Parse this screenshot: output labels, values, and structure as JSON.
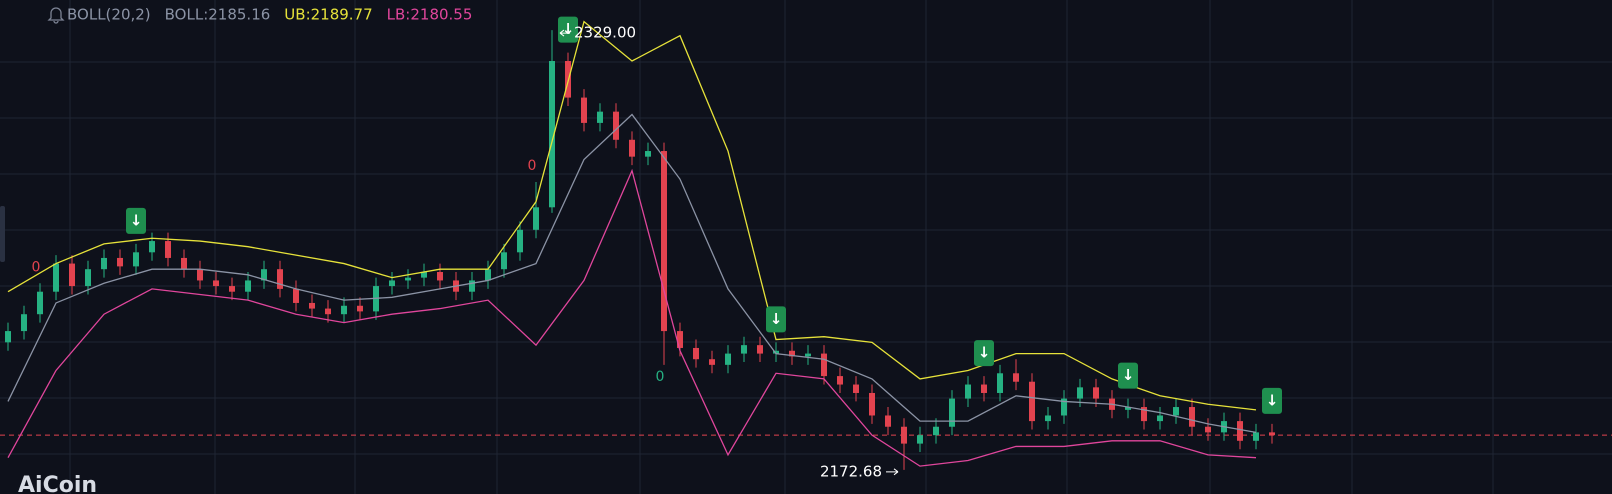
{
  "chart_data": {
    "type": "candlestick",
    "indicator": {
      "name": "BOLL(20,2)",
      "items": [
        {
          "label": "BOLL:2185.16",
          "color": "#8b93a5"
        },
        {
          "label": "UB:2189.77",
          "color": "#e6e23a"
        },
        {
          "label": "LB:2180.55",
          "color": "#e0469c"
        }
      ]
    },
    "watermark": "AiCoin",
    "ylim": [
      2168,
      2334
    ],
    "up_color": "#26b283",
    "down_color": "#e2434f",
    "open": [
      2218,
      2222,
      2228,
      2236,
      2246,
      2238,
      2244,
      2248,
      2245,
      2250,
      2254,
      2248,
      2244,
      2240,
      2238,
      2236,
      2240,
      2244,
      2237,
      2232,
      2230,
      2228,
      2231,
      2229,
      2238,
      2240,
      2241,
      2243,
      2240,
      2236,
      2240,
      2244,
      2250,
      2258,
      2266,
      2318,
      2305,
      2296,
      2300,
      2290,
      2284,
      2286,
      2222,
      2216,
      2212,
      2210,
      2214,
      2217,
      2214,
      2215,
      2213,
      2214,
      2206,
      2203,
      2200,
      2192,
      2188,
      2182,
      2185,
      2188,
      2198,
      2203,
      2200,
      2207,
      2204,
      2190,
      2192,
      2198,
      2202,
      2198,
      2194,
      2195,
      2190,
      2192,
      2195,
      2188,
      2186,
      2190,
      2183,
      2186
    ],
    "high": [
      2225,
      2231,
      2239,
      2249,
      2249,
      2247,
      2251,
      2251,
      2253,
      2257,
      2257,
      2251,
      2247,
      2243,
      2241,
      2243,
      2247,
      2247,
      2240,
      2235,
      2233,
      2234,
      2234,
      2241,
      2243,
      2244,
      2246,
      2246,
      2243,
      2243,
      2247,
      2253,
      2261,
      2275,
      2329,
      2321,
      2308,
      2303,
      2303,
      2293,
      2289,
      2289,
      2225,
      2219,
      2215,
      2217,
      2220,
      2220,
      2218,
      2218,
      2217,
      2217,
      2209,
      2206,
      2203,
      2195,
      2191,
      2188,
      2191,
      2201,
      2206,
      2206,
      2210,
      2212,
      2207,
      2195,
      2201,
      2205,
      2205,
      2201,
      2198,
      2198,
      2195,
      2198,
      2198,
      2191,
      2193,
      2193,
      2189,
      2189
    ],
    "low": [
      2215,
      2219,
      2225,
      2233,
      2235,
      2235,
      2241,
      2242,
      2242,
      2247,
      2245,
      2241,
      2237,
      2235,
      2233,
      2233,
      2237,
      2234,
      2229,
      2227,
      2225,
      2225,
      2226,
      2226,
      2235,
      2237,
      2238,
      2237,
      2233,
      2233,
      2237,
      2241,
      2247,
      2255,
      2264,
      2302,
      2293,
      2293,
      2287,
      2281,
      2281,
      2210,
      2213,
      2209,
      2207,
      2207,
      2211,
      2211,
      2211,
      2210,
      2210,
      2203,
      2200,
      2197,
      2189,
      2185,
      2172.68,
      2179,
      2182,
      2185,
      2195,
      2197,
      2197,
      2201,
      2187,
      2187,
      2189,
      2195,
      2195,
      2191,
      2191,
      2187,
      2187,
      2189,
      2185,
      2183,
      2183,
      2180,
      2180,
      2182
    ],
    "close": [
      2222,
      2228,
      2236,
      2246,
      2238,
      2244,
      2248,
      2245,
      2250,
      2254,
      2248,
      2244,
      2240,
      2238,
      2236,
      2240,
      2244,
      2237,
      2232,
      2230,
      2228,
      2231,
      2229,
      2238,
      2240,
      2241,
      2243,
      2240,
      2236,
      2240,
      2244,
      2250,
      2258,
      2266,
      2318,
      2305,
      2296,
      2300,
      2290,
      2284,
      2286,
      2222,
      2216,
      2212,
      2210,
      2214,
      2217,
      2214,
      2215,
      2213,
      2214,
      2206,
      2203,
      2200,
      2192,
      2188,
      2182,
      2185,
      2188,
      2198,
      2203,
      2200,
      2207,
      2204,
      2190,
      2192,
      2198,
      2202,
      2198,
      2194,
      2195,
      2190,
      2192,
      2195,
      2188,
      2186,
      2190,
      2183,
      2186,
      2185
    ],
    "band_x": [
      0,
      3,
      6,
      9,
      12,
      15,
      18,
      21,
      24,
      27,
      30,
      33,
      36,
      39,
      42,
      45,
      48,
      51,
      54,
      57,
      60,
      63,
      66,
      69,
      72,
      75,
      78
    ],
    "series": [
      {
        "color": "#e6e23a",
        "values": [
          2236,
          2246,
          2253,
          2255,
          2254,
          2252,
          2249,
          2246,
          2241,
          2244,
          2244,
          2268,
          2332,
          2318,
          2327,
          2286,
          2219,
          2220,
          2218,
          2205,
          2208,
          2214,
          2214,
          2205,
          2199,
          2196,
          2194
        ]
      },
      {
        "color": "#8b93a5",
        "values": [
          2197,
          2232,
          2239,
          2244,
          2244,
          2242,
          2237,
          2233,
          2234,
          2237,
          2240,
          2246,
          2283,
          2299,
          2276,
          2237,
          2214,
          2212,
          2205,
          2190,
          2190,
          2199,
          2197,
          2196,
          2193,
          2189,
          2186
        ]
      },
      {
        "color": "#e0469c",
        "values": [
          2177,
          2208,
          2228,
          2237,
          2235,
          2233,
          2228,
          2225,
          2228,
          2230,
          2233,
          2217,
          2240,
          2279,
          2215,
          2178,
          2207,
          2205,
          2185,
          2174,
          2176,
          2181,
          2181,
          2183,
          2183,
          2178,
          2177
        ]
      }
    ],
    "markers": [
      {
        "label": "0",
        "candle": 2,
        "color": "#e2434f"
      },
      {
        "label": "0",
        "candle": 33,
        "color": "#e2434f"
      },
      {
        "label": "0",
        "candle": 41,
        "color": "#26b283"
      },
      {
        "label": "↓",
        "candle": 8,
        "color": "#1f8f4f"
      },
      {
        "label": "↓",
        "candle": 35,
        "color": "#1f8f4f"
      },
      {
        "label": "↓",
        "candle": 48,
        "color": "#1f8f4f"
      },
      {
        "label": "↓",
        "candle": 61,
        "color": "#1f8f4f"
      },
      {
        "label": "↓",
        "candle": 70,
        "color": "#1f8f4f"
      },
      {
        "label": "↓",
        "candle": 79,
        "color": "#1f8f4f"
      }
    ],
    "annotations": [
      {
        "text": "2329.00",
        "candle": 34,
        "value": 2329
      },
      {
        "text": "2172.68",
        "candle": 56,
        "value": 2172.68
      }
    ]
  }
}
